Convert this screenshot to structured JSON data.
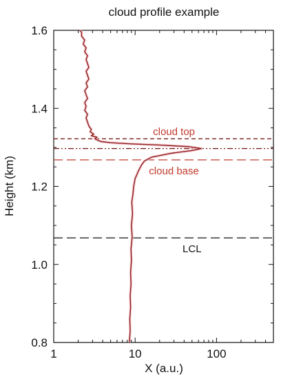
{
  "chart_data": {
    "type": "line",
    "title": "cloud profile example",
    "xlabel": "X (a.u.)",
    "ylabel": "Height (km)",
    "xscale": "log",
    "xlim": [
      1,
      500
    ],
    "ylim": [
      0.8,
      1.6
    ],
    "xticks": [
      {
        "value": 1,
        "label": "1"
      },
      {
        "value": 10,
        "label": "10"
      },
      {
        "value": 100,
        "label": "100"
      }
    ],
    "yticks": [
      {
        "value": 0.8,
        "label": "0.8"
      },
      {
        "value": 1.0,
        "label": "1.0"
      },
      {
        "value": 1.2,
        "label": "1.2"
      },
      {
        "value": 1.4,
        "label": "1.4"
      },
      {
        "value": 1.6,
        "label": "1.6"
      }
    ],
    "grid": false,
    "series": [
      {
        "color": "#8b1a1a",
        "points": [
          [
            8.5,
            0.8
          ],
          [
            8.7,
            0.83
          ],
          [
            8.6,
            0.86
          ],
          [
            8.8,
            0.89
          ],
          [
            8.7,
            0.92
          ],
          [
            8.9,
            0.95
          ],
          [
            8.8,
            0.98
          ],
          [
            9.0,
            1.01
          ],
          [
            8.9,
            1.04
          ],
          [
            9.2,
            1.07
          ],
          [
            9.0,
            1.1
          ],
          [
            9.3,
            1.13
          ],
          [
            9.1,
            1.16
          ],
          [
            9.4,
            1.18
          ],
          [
            9.6,
            1.2
          ],
          [
            10.0,
            1.22
          ],
          [
            11.0,
            1.24
          ],
          [
            12.0,
            1.255
          ],
          [
            13.0,
            1.265
          ],
          [
            16.0,
            1.275
          ],
          [
            28.0,
            1.285
          ],
          [
            50.0,
            1.292
          ],
          [
            65.0,
            1.297
          ],
          [
            45.0,
            1.302
          ],
          [
            20.0,
            1.306
          ],
          [
            9.0,
            1.309
          ],
          [
            5.0,
            1.312
          ],
          [
            3.8,
            1.315
          ],
          [
            3.5,
            1.318
          ],
          [
            3.2,
            1.322
          ],
          [
            3.4,
            1.326
          ],
          [
            2.9,
            1.33
          ],
          [
            3.1,
            1.334
          ],
          [
            2.8,
            1.34
          ],
          [
            2.9,
            1.346
          ],
          [
            2.7,
            1.355
          ],
          [
            2.6,
            1.365
          ],
          [
            2.5,
            1.375
          ],
          [
            2.6,
            1.385
          ],
          [
            2.4,
            1.395
          ],
          [
            2.5,
            1.405
          ],
          [
            2.4,
            1.415
          ],
          [
            2.6,
            1.425
          ],
          [
            2.5,
            1.435
          ],
          [
            2.4,
            1.445
          ],
          [
            2.6,
            1.455
          ],
          [
            2.5,
            1.465
          ],
          [
            2.7,
            1.475
          ],
          [
            2.6,
            1.485
          ],
          [
            2.5,
            1.495
          ],
          [
            2.7,
            1.505
          ],
          [
            2.6,
            1.515
          ],
          [
            2.5,
            1.525
          ],
          [
            2.6,
            1.535
          ],
          [
            2.4,
            1.545
          ],
          [
            2.5,
            1.555
          ],
          [
            2.3,
            1.565
          ],
          [
            2.4,
            1.575
          ],
          [
            2.2,
            1.585
          ],
          [
            2.2,
            1.595
          ],
          [
            2.1,
            1.6
          ]
        ]
      }
    ],
    "reference_lines": [
      {
        "y": 1.322,
        "style": "dashed",
        "color": "#7a1f1f"
      },
      {
        "y": 1.297,
        "style": "dash-dot-dot",
        "color": "#7a1f1f"
      },
      {
        "y": 1.268,
        "style": "long-dashed",
        "color": "#c0392b"
      },
      {
        "y": 1.068,
        "style": "long-dashed",
        "color": "#111111"
      }
    ],
    "annotations": [
      {
        "text": "cloud top",
        "x": 30,
        "y": 1.34,
        "color": "#c0392b"
      },
      {
        "text": "cloud base",
        "x": 30,
        "y": 1.24,
        "color": "#c0392b"
      },
      {
        "text": "LCL",
        "x": 50,
        "y": 1.04,
        "color": "#111111"
      }
    ]
  }
}
